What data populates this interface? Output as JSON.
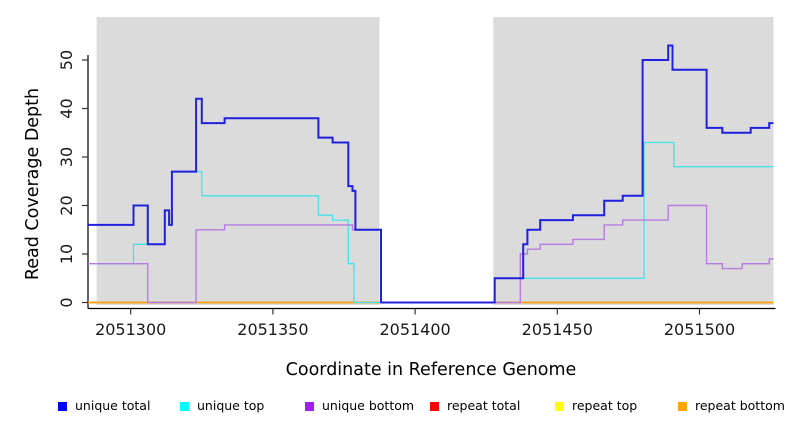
{
  "chart_data": {
    "type": "line",
    "subtype": "step-after-coverage-plot",
    "title": "",
    "xlabel": "Coordinate in Reference Genome",
    "ylabel": "Read Coverage Depth",
    "x_ticks": [
      2051300,
      2051350,
      2051400,
      2051450,
      2051500
    ],
    "y_ticks": [
      0,
      10,
      20,
      30,
      40,
      50
    ],
    "xlim": [
      2051285,
      2051526
    ],
    "ylim": [
      0,
      59
    ],
    "grid": false,
    "plot_band": [
      2051288,
      2051526
    ],
    "gap_band": [
      2051387.5,
      2051427.5
    ],
    "colors": {
      "plot_bg": "#dbdbdb",
      "gap_bg": "#ffffff",
      "axis": "#000000",
      "tick": "#333333",
      "tick_text": "#1a1a1a"
    },
    "series": [
      {
        "name": "repeat total",
        "color": "#cc0000",
        "width": 1.2,
        "steps": [
          [
            2051285,
            0
          ]
        ]
      },
      {
        "name": "repeat top",
        "color": "#eeee00",
        "width": 1.2,
        "steps": [
          [
            2051285,
            0
          ]
        ]
      },
      {
        "name": "repeat bottom",
        "color": "#ff9e14",
        "width": 1.8,
        "steps": [
          [
            2051285,
            0
          ]
        ]
      },
      {
        "name": "unique top",
        "color": "#45e2e8",
        "width": 1.3,
        "steps": [
          [
            2051285,
            8
          ],
          [
            2051301,
            12
          ],
          [
            2051312,
            19
          ],
          [
            2051313.5,
            16
          ],
          [
            2051314.5,
            27
          ],
          [
            2051325,
            22
          ],
          [
            2051366,
            18
          ],
          [
            2051371,
            17
          ],
          [
            2051376.5,
            8
          ],
          [
            2051378.5,
            0
          ],
          [
            2051428,
            5
          ],
          [
            2051480.5,
            33
          ],
          [
            2051491,
            28
          ]
        ]
      },
      {
        "name": "unique bottom",
        "color": "#b47ce0",
        "width": 1.4,
        "steps": [
          [
            2051285,
            8
          ],
          [
            2051306,
            0
          ],
          [
            2051323,
            15
          ],
          [
            2051333,
            16
          ],
          [
            2051378,
            15
          ],
          [
            2051388,
            0
          ],
          [
            2051437,
            10
          ],
          [
            2051439.5,
            11
          ],
          [
            2051444,
            12
          ],
          [
            2051455.5,
            13
          ],
          [
            2051466.5,
            16
          ],
          [
            2051473,
            17
          ],
          [
            2051489,
            20
          ],
          [
            2051502.5,
            8
          ],
          [
            2051508,
            7
          ],
          [
            2051515,
            8
          ],
          [
            2051524.5,
            9
          ]
        ]
      },
      {
        "name": "unique total",
        "color": "#2020dd",
        "width": 2.0,
        "steps": [
          [
            2051285,
            16
          ],
          [
            2051301,
            20
          ],
          [
            2051306,
            12
          ],
          [
            2051312,
            19
          ],
          [
            2051313.5,
            16
          ],
          [
            2051314.5,
            27
          ],
          [
            2051323,
            42
          ],
          [
            2051325,
            37
          ],
          [
            2051333,
            38
          ],
          [
            2051366,
            34
          ],
          [
            2051371,
            33
          ],
          [
            2051376.5,
            24
          ],
          [
            2051378,
            23
          ],
          [
            2051379,
            15
          ],
          [
            2051388,
            0
          ],
          [
            2051428,
            5
          ],
          [
            2051438,
            12
          ],
          [
            2051439.5,
            15
          ],
          [
            2051444,
            17
          ],
          [
            2051455.5,
            18
          ],
          [
            2051466.5,
            21
          ],
          [
            2051473,
            22
          ],
          [
            2051480,
            50
          ],
          [
            2051489,
            53
          ],
          [
            2051490.5,
            48
          ],
          [
            2051502.5,
            36
          ],
          [
            2051508,
            35
          ],
          [
            2051518,
            36
          ],
          [
            2051524.5,
            37
          ]
        ]
      }
    ],
    "legend": [
      {
        "label": "unique total",
        "color": "#0000ff"
      },
      {
        "label": "unique top",
        "color": "#00ffff"
      },
      {
        "label": "unique bottom",
        "color": "#a020f0"
      },
      {
        "label": "repeat total",
        "color": "#ff0000"
      },
      {
        "label": "repeat top",
        "color": "#ffff00"
      },
      {
        "label": "repeat bottom",
        "color": "#ffa500"
      }
    ],
    "legend_position": "bottom"
  }
}
